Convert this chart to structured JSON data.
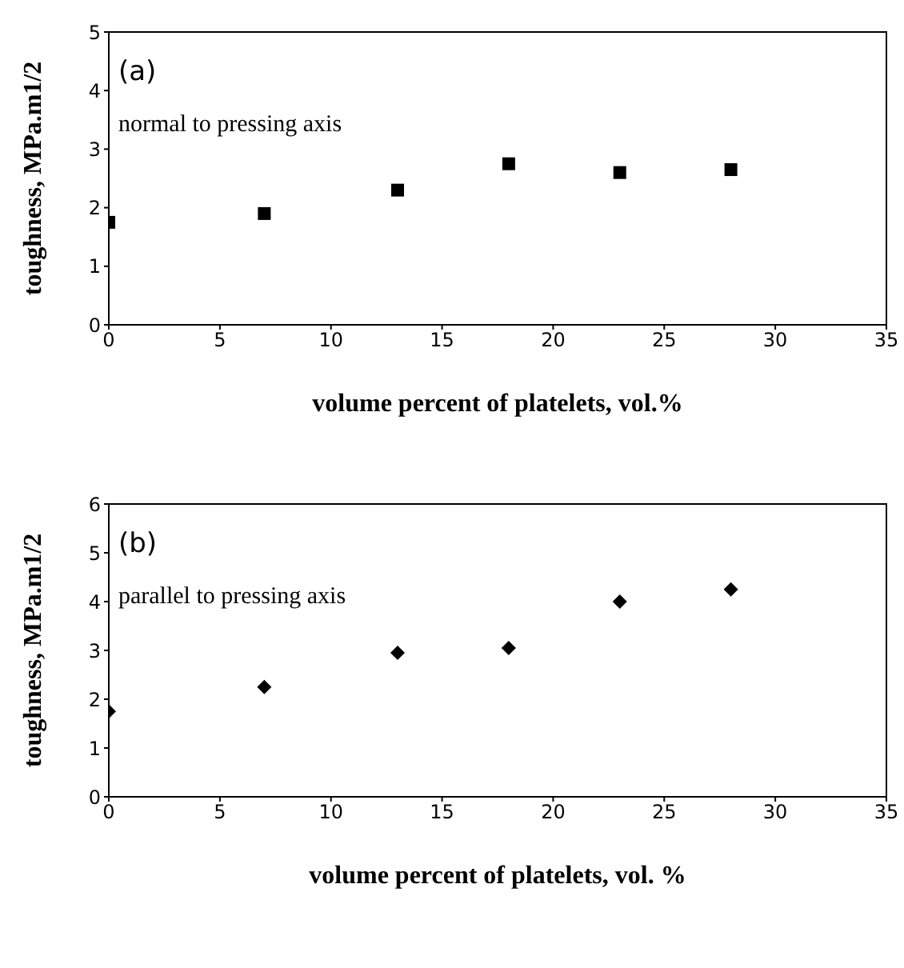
{
  "chart_data": [
    {
      "type": "scatter",
      "xlabel": "volume percent of platelets, vol.%",
      "ylabel": "toughness, MPa.m1/2",
      "annotations": [
        "(a)",
        "normal to pressing axis"
      ],
      "x": [
        0,
        7,
        13,
        18,
        23,
        28
      ],
      "values": [
        1.75,
        1.9,
        2.3,
        2.75,
        2.6,
        2.65
      ],
      "color": "#000000",
      "marker": "square",
      "xlim": [
        0,
        35
      ],
      "xticks": [
        0,
        5,
        10,
        15,
        20,
        25,
        30,
        35
      ],
      "ylim": [
        0,
        5
      ],
      "yticks": [
        0,
        1,
        2,
        3,
        4,
        5
      ],
      "grid": false,
      "legend": false
    },
    {
      "type": "scatter",
      "xlabel": "volume percent of platelets, vol. %",
      "ylabel": "toughness, MPa.m1/2",
      "annotations": [
        "(b)",
        "parallel to pressing axis"
      ],
      "x": [
        0,
        7,
        13,
        18,
        23,
        28
      ],
      "values": [
        1.75,
        2.25,
        2.95,
        3.05,
        4.0,
        4.25
      ],
      "color": "#000000",
      "marker": "diamond",
      "xlim": [
        0,
        35
      ],
      "xticks": [
        0,
        5,
        10,
        15,
        20,
        25,
        30,
        35
      ],
      "ylim": [
        0,
        6
      ],
      "yticks": [
        0,
        1,
        2,
        3,
        4,
        5,
        6
      ],
      "grid": false,
      "legend": false
    }
  ]
}
